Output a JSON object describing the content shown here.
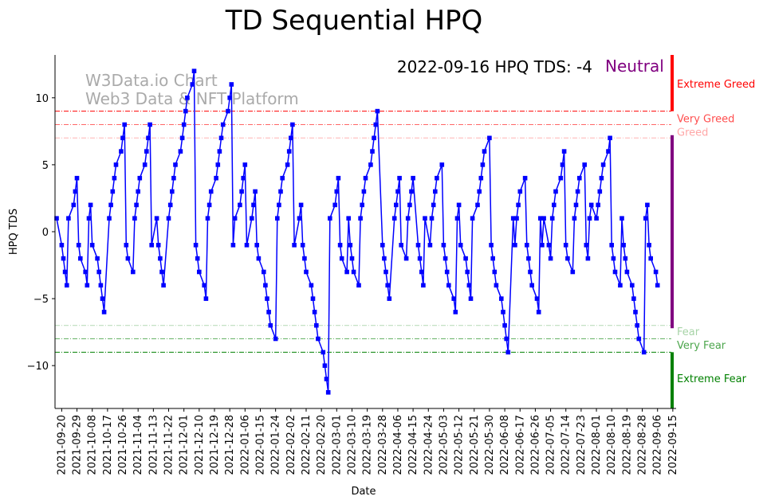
{
  "chart_data": {
    "type": "line",
    "title": "TD Sequential HPQ",
    "xlabel": "Date",
    "ylabel": "HPQ TDS",
    "ylim": [
      -13.2,
      13.2
    ],
    "yticks": [
      -10,
      -5,
      0,
      5,
      10
    ],
    "x_start": "2021-09-17",
    "x_end": "2022-09-16",
    "x_tick_labels": [
      "2021-09-20",
      "2021-09-29",
      "2021-10-08",
      "2021-10-17",
      "2021-10-26",
      "2021-11-04",
      "2021-11-13",
      "2021-11-22",
      "2021-12-01",
      "2021-12-10",
      "2021-12-19",
      "2021-12-28",
      "2022-01-06",
      "2022-01-15",
      "2022-01-24",
      "2022-02-02",
      "2022-02-11",
      "2022-02-20",
      "2022-03-01",
      "2022-03-10",
      "2022-03-19",
      "2022-03-28",
      "2022-04-06",
      "2022-04-15",
      "2022-04-24",
      "2022-05-03",
      "2022-05-12",
      "2022-05-21",
      "2022-05-30",
      "2022-06-08",
      "2022-06-17",
      "2022-06-26",
      "2022-07-05",
      "2022-07-14",
      "2022-07-23",
      "2022-08-01",
      "2022-08-10",
      "2022-08-19",
      "2022-08-28",
      "2022-09-06",
      "2022-09-15"
    ],
    "series": [
      {
        "color": "#0000ff",
        "marker": "square",
        "values": [
          1,
          -1,
          -2,
          -3,
          -4,
          1,
          2,
          3,
          4,
          -1,
          -2,
          -3,
          -4,
          1,
          2,
          -1,
          -2,
          -3,
          -4,
          -5,
          -6,
          1,
          2,
          3,
          4,
          5,
          6,
          7,
          8,
          -1,
          -2,
          -3,
          1,
          2,
          3,
          4,
          5,
          6,
          7,
          8,
          -1,
          1,
          -1,
          -2,
          -3,
          -4,
          1,
          2,
          3,
          4,
          5,
          6,
          7,
          8,
          9,
          10,
          11,
          12,
          -1,
          -2,
          -3,
          -4,
          -5,
          1,
          2,
          3,
          4,
          5,
          6,
          7,
          8,
          9,
          10,
          11,
          -1,
          1,
          2,
          3,
          4,
          5,
          -1,
          1,
          2,
          3,
          -1,
          -2,
          -3,
          -4,
          -5,
          -6,
          -7,
          -8,
          1,
          2,
          3,
          4,
          5,
          6,
          7,
          8,
          -1,
          1,
          2,
          -1,
          -2,
          -3,
          -4,
          -5,
          -6,
          -7,
          -8,
          -9,
          -10,
          -11,
          -12,
          1,
          2,
          3,
          4,
          -1,
          -2,
          -3,
          1,
          -1,
          -2,
          -3,
          -4,
          1,
          2,
          3,
          4,
          5,
          6,
          7,
          8,
          9,
          -1,
          -2,
          -3,
          -4,
          -5,
          1,
          2,
          3,
          4,
          -1,
          -2,
          1,
          2,
          3,
          4,
          -1,
          -2,
          -3,
          -4,
          1,
          -1,
          1,
          2,
          3,
          4,
          5,
          -1,
          -2,
          -3,
          -4,
          -5,
          -6,
          1,
          2,
          -1,
          -2,
          -3,
          -4,
          -5,
          1,
          2,
          3,
          4,
          5,
          6,
          7,
          -1,
          -2,
          -3,
          -4,
          -5,
          -6,
          -7,
          -8,
          -9,
          1,
          -1,
          1,
          2,
          3,
          4,
          -1,
          -2,
          -3,
          -4,
          -5,
          -6,
          1,
          -1,
          1,
          -1,
          -2,
          1,
          2,
          3,
          4,
          5,
          6,
          -1,
          -2,
          -3,
          1,
          2,
          3,
          4,
          5,
          -1,
          -2,
          1,
          2,
          1,
          2,
          3,
          4,
          5,
          6,
          7,
          -1,
          -2,
          -3,
          -4,
          1,
          -1,
          -2,
          -3,
          -4,
          -5,
          -6,
          -7,
          -8,
          -9,
          1,
          2,
          -1,
          -2,
          -3,
          -4
        ]
      }
    ],
    "reference_lines": [
      {
        "value": 9,
        "label": "",
        "color": "#ff0000",
        "style": "dashdot",
        "alpha": 1.0
      },
      {
        "value": 8,
        "label": "",
        "color": "#ff0000",
        "style": "dashdot",
        "alpha": 0.6
      },
      {
        "value": 7,
        "label": "",
        "color": "#ff0000",
        "style": "dashdot",
        "alpha": 0.3
      },
      {
        "value": -7,
        "label": "",
        "color": "#008000",
        "style": "dashdot",
        "alpha": 0.3
      },
      {
        "value": -8,
        "label": "",
        "color": "#008000",
        "style": "dashdot",
        "alpha": 0.6
      },
      {
        "value": -9,
        "label": "",
        "color": "#008000",
        "style": "dashdot",
        "alpha": 1.0
      }
    ],
    "zones": [
      {
        "label": "Extreme Greed",
        "color": "#ff0000",
        "from": 9,
        "to": 13.2,
        "label_y": 11
      },
      {
        "label": "Very Greed",
        "color": "#ff0000",
        "alpha": 0.7,
        "label_y": 8.4
      },
      {
        "label": "Greed",
        "color": "#ff0000",
        "alpha": 0.35,
        "label_y": 7.4
      },
      {
        "label": "Neutral",
        "color": "#800080",
        "from": -7.2,
        "to": 7.2
      },
      {
        "label": "Fear",
        "color": "#008000",
        "alpha": 0.35,
        "label_y": -7.5
      },
      {
        "label": "Very Fear",
        "color": "#008000",
        "alpha": 0.7,
        "label_y": -8.5
      },
      {
        "label": "Extreme Fear",
        "color": "#008000",
        "from": -13.2,
        "to": -9,
        "label_y": -11
      }
    ],
    "status_text": "2022-09-16 HPQ TDS: -4",
    "status_label": "Neutral",
    "status_color": "#800080",
    "watermark_line1": "W3Data.io Chart",
    "watermark_line2": "Web3 Data & NFT Platform"
  }
}
